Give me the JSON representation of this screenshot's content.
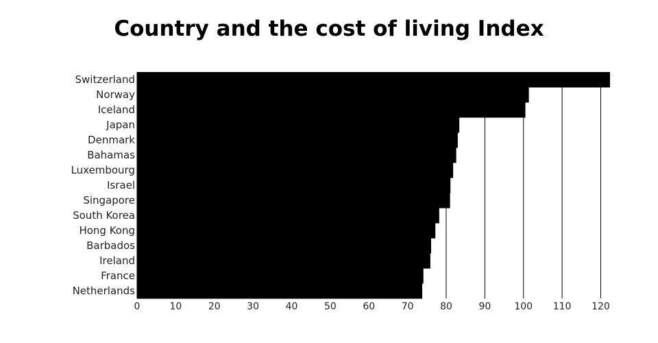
{
  "chart_data": {
    "type": "bar",
    "orientation": "horizontal",
    "title": "Country and the cost of living Index",
    "xlabel": "",
    "ylabel": "",
    "categories": [
      "Switzerland",
      "Norway",
      "Iceland",
      "Japan",
      "Denmark",
      "Bahamas",
      "Luxembourg",
      "Israel",
      "Singapore",
      "South Korea",
      "Hong Kong",
      "Barbados",
      "Ireland",
      "France",
      "Netherlands"
    ],
    "values": [
      122.4,
      101.4,
      100.5,
      83.4,
      83.0,
      82.6,
      81.8,
      81.1,
      81.0,
      78.2,
      77.2,
      76.1,
      75.9,
      74.1,
      73.8
    ],
    "xlim": [
      0,
      122.4
    ],
    "xticks": [
      0,
      10,
      20,
      30,
      40,
      50,
      60,
      70,
      80,
      90,
      100,
      110,
      120
    ],
    "grid": "vertical",
    "bar_color": "#000000",
    "legend": "none"
  }
}
